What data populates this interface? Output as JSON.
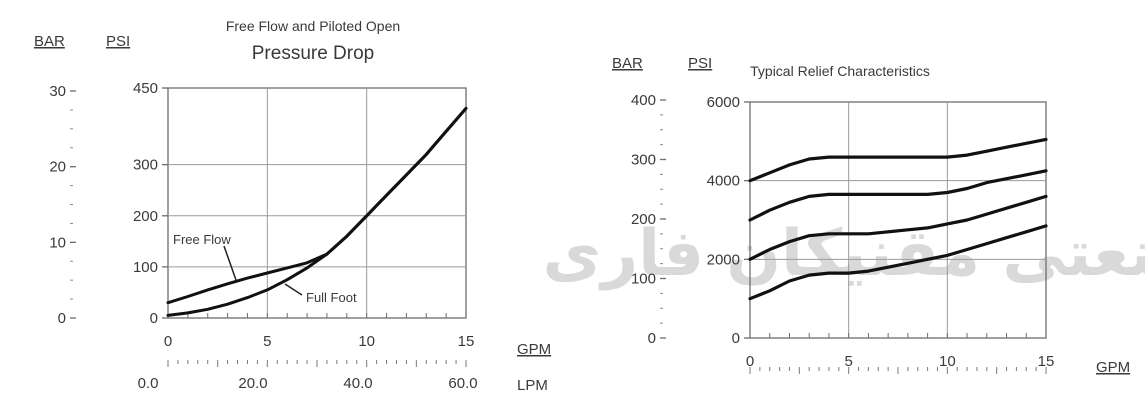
{
  "chart_data": [
    {
      "type": "line",
      "title": "Free Flow and Piloted Open",
      "subtitle": "Pressure Drop",
      "xlabel": "GPM",
      "x2label": "LPM",
      "ylabel": "PSI",
      "y2label": "BAR",
      "xlim": [
        0,
        15
      ],
      "ylim": [
        0,
        450
      ],
      "grid": true,
      "xticks": [
        0,
        5,
        10,
        15
      ],
      "x2ticks": [
        "0.0",
        "20.0",
        "40.0",
        "60.0"
      ],
      "yticks": [
        0,
        100,
        200,
        300,
        450
      ],
      "y2ticks": [
        0,
        10,
        20,
        30
      ],
      "series": [
        {
          "name": "Free Flow",
          "x": [
            0,
            1,
            2,
            3,
            4,
            5,
            6,
            7,
            8,
            9,
            10,
            11,
            12,
            13,
            14,
            15
          ],
          "y": [
            30,
            42,
            55,
            67,
            78,
            88,
            98,
            108,
            125,
            160,
            200,
            240,
            280,
            320,
            365,
            410
          ]
        },
        {
          "name": "Full Foot",
          "x": [
            0,
            1,
            2,
            3,
            4,
            5,
            6,
            7,
            8,
            9,
            10,
            11,
            12,
            13,
            14,
            15
          ],
          "y": [
            5,
            10,
            17,
            27,
            40,
            55,
            75,
            98,
            125,
            160,
            200,
            240,
            280,
            320,
            365,
            410
          ]
        }
      ],
      "annotations": [
        "Free Flow",
        "Full Foot"
      ]
    },
    {
      "type": "line",
      "title": "Typical Relief Characteristics",
      "xlabel": "GPM",
      "ylabel": "PSI",
      "y2label": "BAR",
      "xlim": [
        0,
        15
      ],
      "ylim": [
        0,
        6000
      ],
      "grid": true,
      "xticks": [
        0,
        5,
        10,
        15
      ],
      "yticks": [
        0,
        2000,
        4000,
        6000
      ],
      "y2ticks": [
        0,
        100,
        200,
        300,
        400
      ],
      "series": [
        {
          "x": [
            0,
            1,
            2,
            3,
            4,
            5,
            6,
            7,
            8,
            9,
            10,
            11,
            12,
            13,
            14,
            15
          ],
          "y": [
            4000,
            4200,
            4400,
            4550,
            4600,
            4600,
            4600,
            4600,
            4600,
            4600,
            4600,
            4650,
            4750,
            4850,
            4950,
            5050
          ]
        },
        {
          "x": [
            0,
            1,
            2,
            3,
            4,
            5,
            6,
            7,
            8,
            9,
            10,
            11,
            12,
            13,
            14,
            15
          ],
          "y": [
            3000,
            3250,
            3450,
            3600,
            3650,
            3650,
            3650,
            3650,
            3650,
            3650,
            3700,
            3800,
            3950,
            4050,
            4150,
            4250
          ]
        },
        {
          "x": [
            0,
            1,
            2,
            3,
            4,
            5,
            6,
            7,
            8,
            9,
            10,
            11,
            12,
            13,
            14,
            15
          ],
          "y": [
            2000,
            2250,
            2450,
            2600,
            2650,
            2650,
            2650,
            2700,
            2750,
            2800,
            2900,
            3000,
            3150,
            3300,
            3450,
            3600
          ]
        },
        {
          "x": [
            0,
            1,
            2,
            3,
            4,
            5,
            6,
            7,
            8,
            9,
            10,
            11,
            12,
            13,
            14,
            15
          ],
          "y": [
            1000,
            1200,
            1450,
            1600,
            1650,
            1650,
            1700,
            1800,
            1900,
            2000,
            2100,
            2250,
            2400,
            2550,
            2700,
            2850
          ]
        }
      ]
    }
  ],
  "watermark": "صنعتی مقنیکان فاری"
}
